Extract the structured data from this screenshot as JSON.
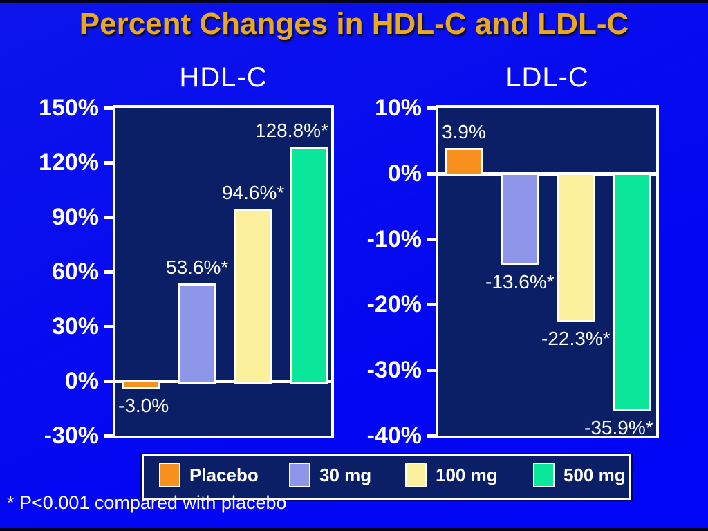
{
  "slide": {
    "title": "Percent Changes in HDL-C and LDL-C",
    "footnote": "* P<0.001 compared with placebo"
  },
  "colors": {
    "background_blue": "#0c15ea",
    "panel_navy": "#0a1f66",
    "title_gold": "#e9a91e",
    "text_white": "#ffffff",
    "placebo_orange": "#f8901d",
    "dose30_periwinkle": "#8e96e9",
    "dose100_yellow": "#fbf19d",
    "dose500_green": "#0ae79a"
  },
  "legend": {
    "items": [
      {
        "label": "Placebo",
        "color": "#f8901d"
      },
      {
        "label": "30 mg",
        "color": "#8e96e9"
      },
      {
        "label": "100 mg",
        "color": "#fbf19d"
      },
      {
        "label": "500 mg",
        "color": "#0ae79a"
      }
    ]
  },
  "chart_data": [
    {
      "type": "bar",
      "title": "HDL-C",
      "categories": [
        "Placebo",
        "30 mg",
        "100 mg",
        "500 mg"
      ],
      "values": [
        -3.0,
        53.6,
        94.6,
        128.8
      ],
      "bar_labels": [
        "-3.0%",
        "53.6%*",
        "94.6%*",
        "128.8%*"
      ],
      "ylim": [
        -30,
        150
      ],
      "ytick_step": 30,
      "ytick_labels": [
        "150%",
        "120%",
        "90%",
        "60%",
        "30%",
        "0%",
        "-30%"
      ],
      "xlabel": "",
      "ylabel": "",
      "grid": false,
      "legend_position": "shared-bottom"
    },
    {
      "type": "bar",
      "title": "LDL-C",
      "categories": [
        "Placebo",
        "30 mg",
        "100 mg",
        "500 mg"
      ],
      "values": [
        3.9,
        -13.6,
        -22.3,
        -35.9
      ],
      "bar_labels": [
        "3.9%",
        "-13.6%*",
        "-22.3%*",
        "-35.9%*"
      ],
      "ylim": [
        -40,
        10
      ],
      "ytick_step": 10,
      "ytick_labels": [
        "10%",
        "0%",
        "-10%",
        "-20%",
        "-30%",
        "-40%"
      ],
      "xlabel": "",
      "ylabel": "",
      "grid": false,
      "legend_position": "shared-bottom"
    }
  ]
}
